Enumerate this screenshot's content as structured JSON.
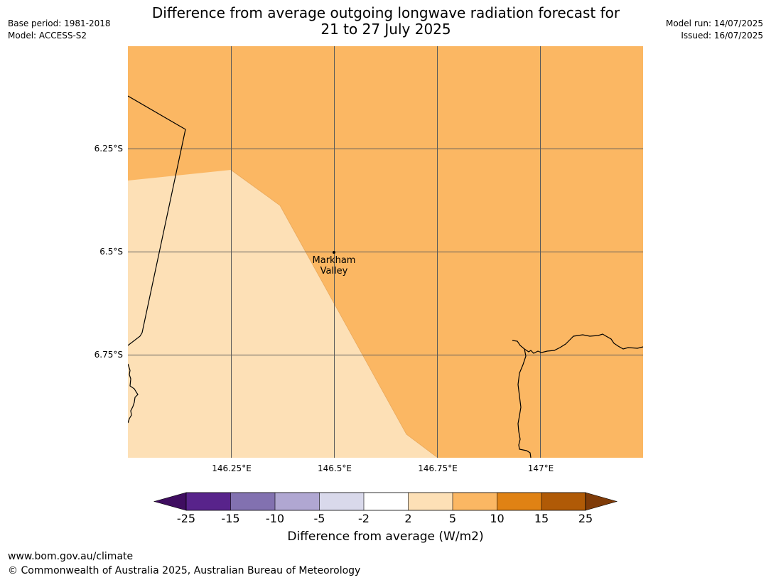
{
  "title": {
    "line1": "Difference from average outgoing longwave radiation forecast for",
    "line2": "21 to 27 July 2025"
  },
  "meta_left": {
    "base_period": "Base period: 1981-2018",
    "model": "Model: ACCESS-S2"
  },
  "meta_right": {
    "model_run": "Model run: 14/07/2025",
    "issued": "Issued: 16/07/2025"
  },
  "map": {
    "lat_labels": [
      "6.25°S",
      "6.5°S",
      "6.75°S"
    ],
    "lon_labels": [
      "146.25°E",
      "146.5°E",
      "146.75°E",
      "147°E"
    ],
    "place": {
      "line1": "Markham",
      "line2": "Valley"
    },
    "colors": {
      "orange": "#fbb763",
      "peach": "#fde0b6",
      "grid": "#5a5a5a",
      "coast": "#000000"
    }
  },
  "colorbar": {
    "label": "Difference from average (W/m2)",
    "ticks": [
      "-25",
      "-15",
      "-10",
      "-5",
      "-2",
      "2",
      "5",
      "10",
      "15",
      "25"
    ],
    "colors": [
      "#3f0d60",
      "#58238b",
      "#8271b0",
      "#b0a7d2",
      "#d9d9eb",
      "#ffffff",
      "#fde0b6",
      "#fbb763",
      "#e08214",
      "#b05a06",
      "#7f3b08"
    ]
  },
  "footer": {
    "url": "www.bom.gov.au/climate",
    "copyright": "© Commonwealth of Australia 2025, Australian Bureau of Meteorology"
  }
}
